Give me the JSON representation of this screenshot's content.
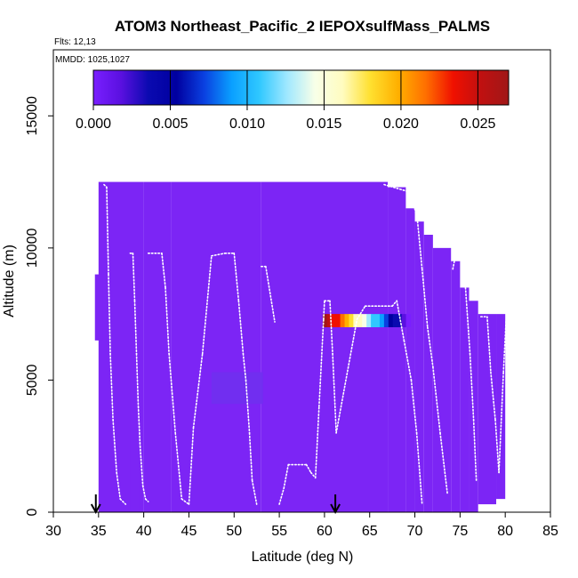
{
  "chart_data": {
    "type": "heatmap",
    "title": "ATOM3 Northeast_Pacific_2 IEPOXsulfMass_PALMS",
    "flights_label": "Flts: 12,13",
    "mmdd_label": "MMDD: 1025,1027",
    "xlabel": "Latitude (deg N)",
    "ylabel": "Altitude (m)",
    "xlim": [
      30,
      85
    ],
    "ylim": [
      0,
      17500
    ],
    "x_ticks": [
      30,
      35,
      40,
      45,
      50,
      55,
      60,
      65,
      70,
      75,
      80,
      85
    ],
    "y_ticks": [
      0,
      5000,
      10000,
      15000
    ],
    "colorbar": {
      "range": [
        0,
        0.027
      ],
      "ticks": [
        0,
        0.005,
        0.01,
        0.015,
        0.02,
        0.025
      ],
      "tick_labels": [
        "0.000",
        "0.005",
        "0.010",
        "0.015",
        "0.020",
        "0.025"
      ],
      "colors": [
        "#7a1fff",
        "#5a10e0",
        "#0a0ab0",
        "#0000a0",
        "#0a40e0",
        "#0aa0ff",
        "#30c8ff",
        "#a0e8ff",
        "#f8ffe8",
        "#fffcc0",
        "#ffe030",
        "#ffb000",
        "#ff7000",
        "#f01000",
        "#c01010",
        "#a01818"
      ]
    },
    "background_color": "#7c25f5",
    "field_cells": [
      [
        35,
        40,
        0,
        12500
      ],
      [
        34.6,
        35.5,
        6500,
        9000
      ],
      [
        40,
        43,
        0,
        12500
      ],
      [
        43,
        53,
        0,
        12500
      ],
      [
        53,
        67,
        0,
        12500
      ],
      [
        67,
        69,
        0,
        12300
      ],
      [
        69,
        70,
        0,
        11500
      ],
      [
        70,
        71,
        0,
        11000
      ],
      [
        71,
        72,
        0,
        10500
      ],
      [
        72,
        74,
        0,
        10000
      ],
      [
        74,
        75,
        0,
        9500
      ],
      [
        75,
        76,
        0,
        8500
      ],
      [
        76,
        77,
        0,
        8000
      ],
      [
        77,
        79,
        300,
        7500
      ],
      [
        79,
        80,
        500,
        7500
      ],
      [
        38.5,
        39.5,
        0,
        5500
      ]
    ],
    "shading_patches": [
      [
        47.5,
        53.2,
        4100,
        5300
      ]
    ],
    "anomaly_strip": {
      "lat": [
        59.8,
        69.5
      ],
      "alt": [
        7000,
        7500
      ]
    },
    "flight_track_lat_alt": [
      [
        35.6,
        12400
      ],
      [
        35.9,
        12300
      ],
      [
        36.1,
        9000
      ],
      [
        36.3,
        6000
      ],
      [
        36.6,
        3500
      ],
      [
        37.0,
        1500
      ],
      [
        37.4,
        500
      ],
      [
        38.0,
        300
      ],
      [
        38.5,
        9800
      ],
      [
        38.8,
        9800
      ],
      [
        39.0,
        8000
      ],
      [
        39.2,
        6000
      ],
      [
        39.4,
        4000
      ],
      [
        39.6,
        2500
      ],
      [
        39.9,
        1000
      ],
      [
        40.2,
        500
      ],
      [
        40.5,
        400
      ],
      [
        40.5,
        9800
      ],
      [
        42.0,
        9800
      ],
      [
        42.4,
        8500
      ],
      [
        42.8,
        6000
      ],
      [
        43.5,
        3000
      ],
      [
        44.2,
        500
      ],
      [
        45.0,
        300
      ],
      [
        45.5,
        3200
      ],
      [
        46.5,
        6000
      ],
      [
        47.5,
        9700
      ],
      [
        49.0,
        9800
      ],
      [
        50.0,
        9800
      ],
      [
        50.5,
        8000
      ],
      [
        51.0,
        6000
      ],
      [
        51.3,
        5000
      ],
      [
        51.7,
        3000
      ],
      [
        52.0,
        1200
      ],
      [
        52.5,
        300
      ],
      [
        53.0,
        9300
      ],
      [
        53.5,
        9300
      ],
      [
        54.5,
        7200
      ],
      [
        55.0,
        300
      ],
      [
        55.5,
        900
      ],
      [
        56.0,
        1800
      ],
      [
        58.0,
        1800
      ],
      [
        58.5,
        1500
      ],
      [
        59.0,
        1300
      ],
      [
        59.4,
        4000
      ],
      [
        59.9,
        7300
      ],
      [
        60.0,
        8000
      ],
      [
        60.6,
        8000
      ],
      [
        60.9,
        6000
      ],
      [
        61.3,
        3000
      ],
      [
        63.6,
        7300
      ],
      [
        64.5,
        7800
      ],
      [
        67.5,
        7800
      ],
      [
        68.0,
        8000
      ],
      [
        68.8,
        6500
      ],
      [
        69.6,
        5000
      ],
      [
        70.2,
        3000
      ],
      [
        70.8,
        300
      ],
      [
        66.6,
        12400
      ],
      [
        69.6,
        12100
      ],
      [
        70.3,
        11000
      ],
      [
        70.8,
        9200
      ],
      [
        71.4,
        7000
      ],
      [
        72.0,
        5500
      ],
      [
        72.8,
        3000
      ],
      [
        73.6,
        700
      ],
      [
        74.2,
        9200
      ],
      [
        74.6,
        9900
      ],
      [
        75.1,
        9800
      ],
      [
        75.6,
        8500
      ],
      [
        76.1,
        6000
      ],
      [
        76.5,
        3500
      ],
      [
        76.8,
        1200
      ],
      [
        77.3,
        7400
      ],
      [
        78.0,
        7400
      ],
      [
        78.4,
        5300
      ],
      [
        78.9,
        3500
      ],
      [
        79.3,
        1500
      ],
      [
        79.8,
        5300
      ],
      [
        80.1,
        7300
      ]
    ],
    "markers_lat": [
      34.7,
      61.2
    ]
  }
}
